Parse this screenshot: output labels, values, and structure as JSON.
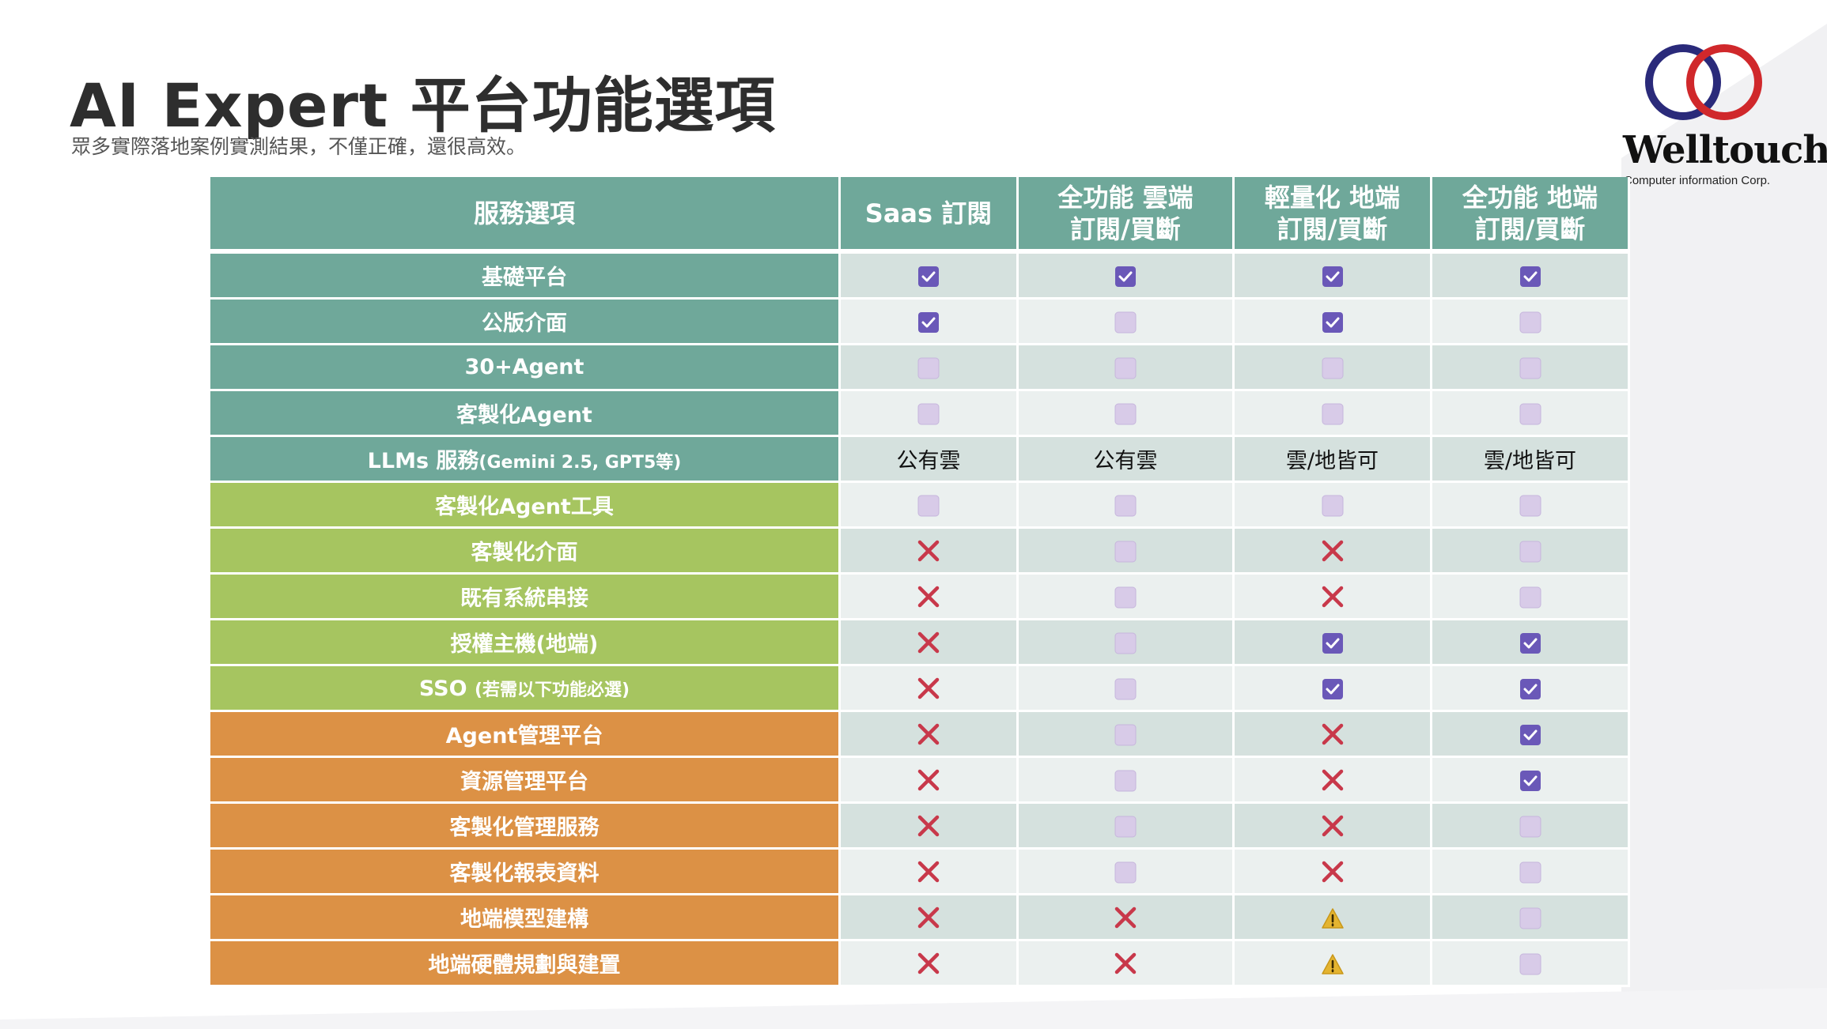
{
  "header": {
    "title": "AI Expert 平台功能選項",
    "subtitle": "眾多實際落地案例實測結果，不僅正確，還很高效。"
  },
  "logo": {
    "name": "Welltouch",
    "tagline": "Computer information Corp.",
    "ring_colors": [
      "#2a2a7a",
      "#d0282b"
    ]
  },
  "table": {
    "headers": [
      "服務選項",
      "Saas 訂閱",
      "全功能 雲端\n訂閱/買斷",
      "輕量化 地端\n訂閱/買斷",
      "全功能 地端\n訂閱/買斷"
    ],
    "category_colors": {
      "teal": "#6fa89a",
      "green": "#a6c560",
      "orange": "#dc9145"
    },
    "rows": [
      {
        "label": "基礎平台",
        "category": "teal",
        "cells": [
          "check",
          "check",
          "check",
          "check"
        ]
      },
      {
        "label": "公版介面",
        "category": "teal",
        "cells": [
          "check",
          "box",
          "check",
          "box"
        ]
      },
      {
        "label": "30+Agent",
        "category": "teal",
        "cells": [
          "box",
          "box",
          "box",
          "box"
        ]
      },
      {
        "label": "客製化Agent",
        "category": "teal",
        "cells": [
          "box",
          "box",
          "box",
          "box"
        ]
      },
      {
        "label": "LLMs 服務",
        "label_small": "(Gemini 2.5, GPT5等)",
        "category": "teal",
        "cells": [
          "text:公有雲",
          "text:公有雲",
          "text:雲/地皆可",
          "text:雲/地皆可"
        ]
      },
      {
        "label": "客製化Agent工具",
        "category": "green",
        "cells": [
          "box",
          "box",
          "box",
          "box"
        ]
      },
      {
        "label": "客製化介面",
        "category": "green",
        "cells": [
          "cross",
          "box",
          "cross",
          "box"
        ]
      },
      {
        "label": "既有系統串接",
        "category": "green",
        "cells": [
          "cross",
          "box",
          "cross",
          "box"
        ]
      },
      {
        "label": "授權主機(地端)",
        "category": "green",
        "cells": [
          "cross",
          "box",
          "check",
          "check"
        ]
      },
      {
        "label": "SSO ",
        "label_small": "(若需以下功能必選)",
        "category": "green",
        "cells": [
          "cross",
          "box",
          "check",
          "check"
        ]
      },
      {
        "label": "Agent管理平台",
        "category": "orange",
        "cells": [
          "cross",
          "box",
          "cross",
          "check"
        ]
      },
      {
        "label": "資源管理平台",
        "category": "orange",
        "cells": [
          "cross",
          "box",
          "cross",
          "check"
        ]
      },
      {
        "label": "客製化管理服務",
        "category": "orange",
        "cells": [
          "cross",
          "box",
          "cross",
          "box"
        ]
      },
      {
        "label": "客製化報表資料",
        "category": "orange",
        "cells": [
          "cross",
          "box",
          "cross",
          "box"
        ]
      },
      {
        "label": "地端模型建構",
        "category": "orange",
        "cells": [
          "cross",
          "cross",
          "warning",
          "box"
        ]
      },
      {
        "label": "地端硬體規劃與建置",
        "category": "orange",
        "cells": [
          "cross",
          "cross",
          "warning",
          "box"
        ]
      }
    ]
  },
  "icons": {
    "check": "checked-box-icon",
    "box": "empty-checkbox-icon",
    "cross": "cross-mark-icon",
    "warning": "warning-icon"
  },
  "colors": {
    "check_fill": "#6a58b8",
    "box_fill": "#d8cbe8",
    "cross": "#c8384a",
    "warning": "#e4b430"
  }
}
